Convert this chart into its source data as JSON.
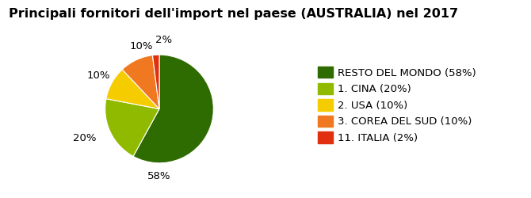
{
  "title": "Principali fornitori dell'import nel paese (AUSTRALIA) nel 2017",
  "slices": [
    58,
    20,
    10,
    10,
    2
  ],
  "labels": [
    "58%",
    "20%",
    "10%",
    "10%",
    "2%"
  ],
  "colors": [
    "#2e6b00",
    "#8fba00",
    "#f5cc00",
    "#f07820",
    "#e03010"
  ],
  "legend_labels": [
    "RESTO DEL MONDO (58%)",
    "1. CINA (20%)",
    "2. USA (10%)",
    "3. COREA DEL SUD (10%)",
    "11. ITALIA (2%)"
  ],
  "startangle": 90,
  "bg_color": "#ffffff",
  "plot_bg_color": "#e0e0e0",
  "title_fontsize": 11.5,
  "label_fontsize": 9.5,
  "legend_fontsize": 9.5,
  "label_colors": [
    "#000000",
    "#000000",
    "#000000",
    "#000000",
    "#000000"
  ],
  "label_distance": 1.25
}
